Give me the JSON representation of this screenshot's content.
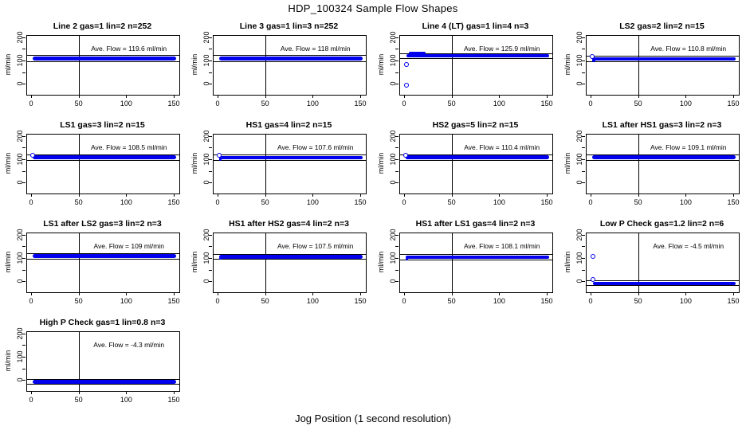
{
  "title": "HDP_100324  Sample Flow Shapes",
  "footer": "Jog Position (1 second resolution)",
  "y_axis_name": "ml/min",
  "colors": {
    "point_blue": "#0000EE",
    "axis_black": "#000000",
    "background": "#FFFFFF"
  },
  "axes": {
    "x_ticks": [
      "0",
      "50",
      "100",
      "150"
    ],
    "x_tick_values": [
      0,
      50,
      100,
      150
    ],
    "y_ticks": [
      "0",
      "100",
      "200"
    ],
    "y_tick_values": [
      0,
      100,
      200
    ],
    "y_minor_tick_values": [
      50,
      150
    ],
    "xlim": [
      -5,
      155
    ],
    "ylim": [
      -43,
      209
    ],
    "vline_x": 50,
    "grid": false
  },
  "chart_data": [
    {
      "type": "scatter",
      "title": "Line 2 gas=1 lin=2 n=252",
      "gas": "1",
      "lin": "2",
      "n": "252",
      "ave_flow": 119.6,
      "annotation": "Ave. Flow =  119.6  ml/min",
      "band": {
        "x": [
          0.5,
          152
        ],
        "y": [
          104,
          121
        ]
      },
      "ref_lines": [
        125,
        100
      ],
      "blobs": [],
      "points": []
    },
    {
      "type": "scatter",
      "title": "Line 3 gas=1 lin=3 n=252",
      "gas": "1",
      "lin": "3",
      "n": "252",
      "ave_flow": 118,
      "annotation": "Ave. Flow =  118  ml/min",
      "band": {
        "x": [
          0.5,
          152
        ],
        "y": [
          104,
          121
        ]
      },
      "ref_lines": [
        125,
        100
      ],
      "blobs": [],
      "points": []
    },
    {
      "type": "scatter",
      "title": "Line 4 (LT) gas=1 lin=4 n=3",
      "gas": "1",
      "lin": "4",
      "n": "3",
      "ave_flow": 125.9,
      "annotation": "Ave. Flow =  125.9  ml/min",
      "band": {
        "x": [
          1.5,
          152
        ],
        "y": [
          116,
          132
        ]
      },
      "ref_lines": [
        134,
        112
      ],
      "blobs": [
        {
          "x": [
            4,
            22
          ],
          "y": [
            132,
            140
          ]
        }
      ],
      "points": [
        {
          "x": 2,
          "y": 88
        },
        {
          "x": 2,
          "y": -2
        }
      ]
    },
    {
      "type": "scatter",
      "title": "LS2 gas=2 lin=2 n=15",
      "gas": "2",
      "lin": "2",
      "n": "15",
      "ave_flow": 110.8,
      "annotation": "Ave. Flow =  110.8  ml/min",
      "band": {
        "x": [
          1,
          152
        ],
        "y": [
          103,
          118
        ]
      },
      "ref_lines": [
        122,
        99
      ],
      "blobs": [
        {
          "x": [
            0.5,
            4
          ],
          "y": [
            97,
            112
          ]
        }
      ],
      "points": [
        {
          "x": 1,
          "y": 120
        }
      ]
    },
    {
      "type": "scatter",
      "title": "LS1 gas=3 lin=2 n=15",
      "gas": "3",
      "lin": "2",
      "n": "15",
      "ave_flow": 108.5,
      "annotation": "Ave. Flow =  108.5  ml/min",
      "band": {
        "x": [
          0.5,
          152
        ],
        "y": [
          104,
          119
        ]
      },
      "ref_lines": [
        123,
        100
      ],
      "blobs": [],
      "points": [
        {
          "x": 1,
          "y": 120
        }
      ]
    },
    {
      "type": "scatter",
      "title": "HS1 gas=4 lin=2 n=15",
      "gas": "4",
      "lin": "2",
      "n": "15",
      "ave_flow": 107.6,
      "annotation": "Ave. Flow =  107.6  ml/min",
      "band": {
        "x": [
          0.5,
          152
        ],
        "y": [
          103,
          118
        ]
      },
      "ref_lines": [
        122,
        99
      ],
      "blobs": [
        {
          "x": [
            0.5,
            3
          ],
          "y": [
            98,
            110
          ]
        }
      ],
      "points": [
        {
          "x": 1,
          "y": 120
        }
      ]
    },
    {
      "type": "scatter",
      "title": "HS2 gas=5 lin=2 n=15",
      "gas": "5",
      "lin": "2",
      "n": "15",
      "ave_flow": 110.4,
      "annotation": "Ave. Flow =  110.4  ml/min",
      "band": {
        "x": [
          1,
          152
        ],
        "y": [
          103,
          119
        ]
      },
      "ref_lines": [
        123,
        99
      ],
      "blobs": [
        {
          "x": [
            0.5,
            4
          ],
          "y": [
            102,
            118
          ]
        }
      ],
      "points": [
        {
          "x": 1,
          "y": 121
        }
      ]
    },
    {
      "type": "scatter",
      "title": "LS1 after HS1 gas=3 lin=2 n=3",
      "gas": "3",
      "lin": "2",
      "n": "3",
      "ave_flow": 109.1,
      "annotation": "Ave. Flow =  109.1  ml/min",
      "band": {
        "x": [
          0.5,
          152
        ],
        "y": [
          104,
          119
        ]
      },
      "ref_lines": [
        123,
        100
      ],
      "blobs": [],
      "points": []
    },
    {
      "type": "scatter",
      "title": "LS1 after LS2 gas=3 lin=2 n=3",
      "gas": "3",
      "lin": "2",
      "n": "3",
      "ave_flow": 109,
      "annotation": "Ave. Flow =  109  ml/min",
      "band": {
        "x": [
          0.5,
          152
        ],
        "y": [
          104,
          119
        ]
      },
      "ref_lines": [
        123,
        100
      ],
      "blobs": [],
      "points": []
    },
    {
      "type": "scatter",
      "title": "HS1 after HS2 gas=4 lin=2 n=3",
      "gas": "4",
      "lin": "2",
      "n": "3",
      "ave_flow": 107.5,
      "annotation": "Ave. Flow =  107.5  ml/min",
      "band": {
        "x": [
          0.5,
          152
        ],
        "y": [
          101,
          116
        ]
      },
      "ref_lines": [
        120,
        97
      ],
      "blobs": [
        {
          "x": [
            0.5,
            3
          ],
          "y": [
            95,
            106
          ]
        }
      ],
      "points": []
    },
    {
      "type": "scatter",
      "title": "HS1 after LS1 gas=4 lin=2 n=3",
      "gas": "4",
      "lin": "2",
      "n": "3",
      "ave_flow": 108.1,
      "annotation": "Ave. Flow =  108.1  ml/min",
      "band": {
        "x": [
          1,
          152
        ],
        "y": [
          100,
          115
        ]
      },
      "ref_lines": [
        119,
        96
      ],
      "blobs": [
        {
          "x": [
            0.5,
            3
          ],
          "y": [
            94,
            105
          ]
        }
      ],
      "points": []
    },
    {
      "type": "scatter",
      "title": "Low P Check gas=1.2 lin=2 n=6",
      "gas": "1.2",
      "lin": "2",
      "n": "6",
      "ave_flow": -4.5,
      "annotation": "Ave. Flow =  -4.5  ml/min",
      "band": {
        "x": [
          1.5,
          152
        ],
        "y": [
          -11,
          2
        ]
      },
      "ref_lines": [
        5,
        -14
      ],
      "blobs": [],
      "points": [
        {
          "x": 2,
          "y": 110
        },
        {
          "x": 2,
          "y": 10
        }
      ]
    },
    {
      "type": "scatter",
      "title": "High P Check gas=1 lin=0.8 n=3",
      "gas": "1",
      "lin": "0.8",
      "n": "3",
      "ave_flow": -4.3,
      "annotation": "Ave. Flow =  -4.3  ml/min",
      "band": {
        "x": [
          0.5,
          152
        ],
        "y": [
          -11,
          4
        ]
      },
      "ref_lines": [
        7,
        -14
      ],
      "blobs": [],
      "points": []
    }
  ]
}
